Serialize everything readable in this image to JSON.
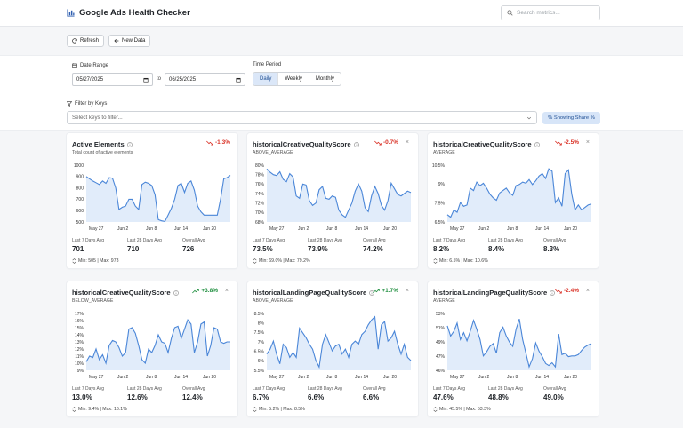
{
  "header": {
    "title": "Google Ads Health Checker",
    "search_placeholder": "Search metrics..."
  },
  "toolbar": {
    "refresh_label": "Refresh",
    "new_data_label": "New Data"
  },
  "filters": {
    "date_range_label": "Date Range",
    "start_date": "05/27/2025",
    "to_label": "to",
    "end_date": "06/25/2025",
    "time_period_label": "Time Period",
    "periods": [
      "Daily",
      "Weekly",
      "Monthly"
    ],
    "active_period": "Daily",
    "filter_keys_label": "Filter by Keys",
    "keys_placeholder": "Select keys to filter...",
    "share_button": "% Showing Share %"
  },
  "colors": {
    "accent": "#4a86d8",
    "fill": "#e1ecfa",
    "down": "#d93025",
    "up": "#1e8e3e"
  },
  "cards": [
    {
      "title": "Active Elements",
      "subtitle": "Total count of active elements",
      "change": "-1.3%",
      "direction": "down",
      "closable": false,
      "stats": [
        [
          "Last 7 Days Avg",
          "701"
        ],
        [
          "Last 28 Days Avg",
          "710"
        ],
        [
          "Overall Avg",
          "726"
        ]
      ],
      "minmax": "Min: 505 | Max: 973",
      "chart_data": {
        "type": "area",
        "x_ticks": [
          "May 27",
          "Jun 2",
          "Jun 8",
          "Jun 14",
          "Jun 20"
        ],
        "y_ticks": [
          "1000",
          "900",
          "800",
          "700",
          "600",
          "500"
        ],
        "ylim": [
          500,
          1000
        ],
        "values": [
          900,
          880,
          860,
          845,
          830,
          860,
          840,
          890,
          885,
          800,
          610,
          630,
          640,
          700,
          700,
          640,
          610,
          830,
          850,
          840,
          820,
          740,
          520,
          510,
          505,
          560,
          620,
          700,
          820,
          840,
          760,
          840,
          860,
          780,
          640,
          590,
          560,
          560,
          560,
          560,
          560,
          700,
          880,
          890,
          910
        ]
      }
    },
    {
      "title": "historicalCreativeQualityScore",
      "subtitle": "ABOVE_AVERAGE",
      "change": "-0.7%",
      "direction": "down",
      "closable": true,
      "stats": [
        [
          "Last 7 Days Avg",
          "73.5%"
        ],
        [
          "Last 28 Days Avg",
          "73.9%"
        ],
        [
          "Overall Avg",
          "74.2%"
        ]
      ],
      "minmax": "Min: 69.0% | Max: 79.2%",
      "chart_data": {
        "type": "area",
        "x_ticks": [
          "May 27",
          "Jun 2",
          "Jun 8",
          "Jun 14",
          "Jun 20"
        ],
        "y_ticks": [
          "80%",
          "78%",
          "76%",
          "74%",
          "72%",
          "70%",
          "68%"
        ],
        "ylim": [
          68,
          80
        ],
        "values": [
          79.2,
          78.5,
          78.0,
          77.8,
          78.6,
          77.0,
          76.5,
          78.2,
          77.5,
          73.5,
          73.0,
          76.0,
          75.8,
          72.5,
          71.5,
          72.0,
          74.8,
          75.5,
          73.0,
          72.8,
          73.5,
          73.2,
          70.5,
          69.5,
          69.0,
          70.5,
          72.0,
          74.5,
          76.0,
          74.5,
          71.0,
          70.2,
          73.5,
          75.5,
          74.0,
          71.5,
          70.5,
          72.5,
          76.2,
          75.0,
          73.8,
          73.5,
          74.0,
          74.5,
          74.2
        ]
      }
    },
    {
      "title": "historicalCreativeQualityScore",
      "subtitle": "AVERAGE",
      "change": "-2.5%",
      "direction": "down",
      "closable": true,
      "stats": [
        [
          "Last 7 Days Avg",
          "8.2%"
        ],
        [
          "Last 28 Days Avg",
          "8.4%"
        ],
        [
          "Overall Avg",
          "8.3%"
        ]
      ],
      "minmax": "Min: 6.5% | Max: 10.6%",
      "chart_data": {
        "type": "area",
        "x_ticks": [
          "May 27",
          "Jun 2",
          "Jun 8",
          "Jun 14",
          "Jun 20"
        ],
        "y_ticks": [
          "10.5%",
          "9%",
          "7.5%",
          "6.5%"
        ],
        "ylim": [
          6.2,
          10.9
        ],
        "values": [
          6.8,
          6.6,
          7.2,
          7.0,
          7.8,
          7.5,
          7.6,
          9.0,
          8.8,
          9.5,
          9.2,
          9.4,
          9.0,
          8.5,
          8.2,
          8.0,
          8.6,
          8.8,
          9.0,
          8.6,
          8.4,
          9.2,
          9.3,
          9.5,
          9.4,
          9.7,
          9.3,
          9.6,
          10.0,
          10.2,
          9.8,
          10.6,
          10.4,
          7.8,
          8.2,
          7.5,
          10.2,
          10.5,
          8.5,
          7.2,
          7.6,
          7.2,
          7.4,
          7.6,
          7.7
        ]
      }
    },
    {
      "title": "historicalCreativeQualityScore",
      "subtitle": "BELOW_AVERAGE",
      "change": "+3.8%",
      "direction": "up",
      "closable": true,
      "stats": [
        [
          "Last 7 Days Avg",
          "13.0%"
        ],
        [
          "Last 28 Days Avg",
          "12.6%"
        ],
        [
          "Overall Avg",
          "12.4%"
        ]
      ],
      "minmax": "Min: 9.4% | Max: 16.1%",
      "chart_data": {
        "type": "area",
        "x_ticks": [
          "May 27",
          "Jun 2",
          "Jun 8",
          "Jun 14",
          "Jun 20"
        ],
        "y_ticks": [
          "17%",
          "16%",
          "15%",
          "14%",
          "13%",
          "12%",
          "11%",
          "10%",
          "9%"
        ],
        "ylim": [
          9,
          17
        ],
        "values": [
          10.2,
          11.0,
          10.8,
          12.0,
          10.5,
          11.2,
          10.0,
          12.5,
          13.2,
          13.0,
          12.2,
          11.0,
          11.5,
          14.8,
          15.0,
          14.2,
          12.5,
          10.5,
          10.0,
          12.0,
          11.5,
          12.5,
          14.0,
          13.0,
          12.8,
          11.5,
          13.5,
          15.0,
          15.2,
          13.5,
          14.8,
          16.1,
          15.5,
          11.5,
          13.0,
          15.5,
          15.8,
          11.0,
          12.5,
          15.0,
          14.8,
          13.0,
          12.8,
          13.0,
          13.0
        ]
      }
    },
    {
      "title": "historicalLandingPageQualityScore",
      "subtitle": "ABOVE_AVERAGE",
      "change": "+1.7%",
      "direction": "up",
      "closable": true,
      "stats": [
        [
          "Last 7 Days Avg",
          "6.7%"
        ],
        [
          "Last 28 Days Avg",
          "6.6%"
        ],
        [
          "Overall Avg",
          "6.6%"
        ]
      ],
      "minmax": "Min: 5.2% | Max: 8.5%",
      "chart_data": {
        "type": "area",
        "x_ticks": [
          "May 27",
          "Jun 2",
          "Jun 8",
          "Jun 14",
          "Jun 20"
        ],
        "y_ticks": [
          "8.5%",
          "8%",
          "7.5%",
          "7%",
          "6.5%",
          "6%",
          "5.5%"
        ],
        "ylim": [
          5.2,
          8.7
        ],
        "values": [
          6.2,
          6.5,
          7.0,
          6.2,
          5.6,
          6.8,
          6.6,
          6.0,
          6.3,
          6.0,
          7.8,
          7.5,
          7.2,
          6.8,
          6.5,
          5.8,
          5.4,
          6.8,
          7.4,
          6.9,
          6.4,
          6.7,
          6.8,
          6.2,
          6.5,
          6.0,
          6.8,
          7.0,
          6.8,
          7.4,
          7.6,
          8.0,
          8.3,
          8.5,
          6.5,
          8.0,
          8.2,
          7.0,
          7.2,
          7.6,
          6.8,
          6.2,
          6.8,
          6.0,
          5.8
        ]
      }
    },
    {
      "title": "historicalLandingPageQualityScore",
      "subtitle": "AVERAGE",
      "change": "-2.4%",
      "direction": "down",
      "closable": true,
      "stats": [
        [
          "Last 7 Days Avg",
          "47.6%"
        ],
        [
          "Last 28 Days Avg",
          "48.8%"
        ],
        [
          "Overall Avg",
          "49.0%"
        ]
      ],
      "minmax": "Min: 45.5% | Max: 53.3%",
      "chart_data": {
        "type": "area",
        "x_ticks": [
          "May 27",
          "Jun 2",
          "Jun 8",
          "Jun 14",
          "Jun 20"
        ],
        "y_ticks": [
          "53%",
          "51%",
          "49%",
          "47%",
          "46%"
        ],
        "ylim": [
          45.5,
          53.8
        ],
        "values": [
          52.0,
          50.5,
          51.2,
          52.4,
          50.0,
          51.0,
          49.8,
          51.2,
          52.8,
          51.5,
          50.0,
          47.6,
          48.2,
          49.0,
          49.4,
          48.0,
          51.0,
          51.8,
          50.5,
          49.6,
          49.0,
          51.5,
          53.0,
          50.0,
          48.0,
          46.0,
          47.2,
          49.5,
          48.3,
          47.5,
          46.5,
          46.2,
          46.6,
          46.0,
          50.8,
          47.8,
          48.0,
          47.5,
          47.6,
          47.6,
          47.8,
          48.4,
          48.9,
          49.2,
          49.4
        ]
      }
    }
  ]
}
